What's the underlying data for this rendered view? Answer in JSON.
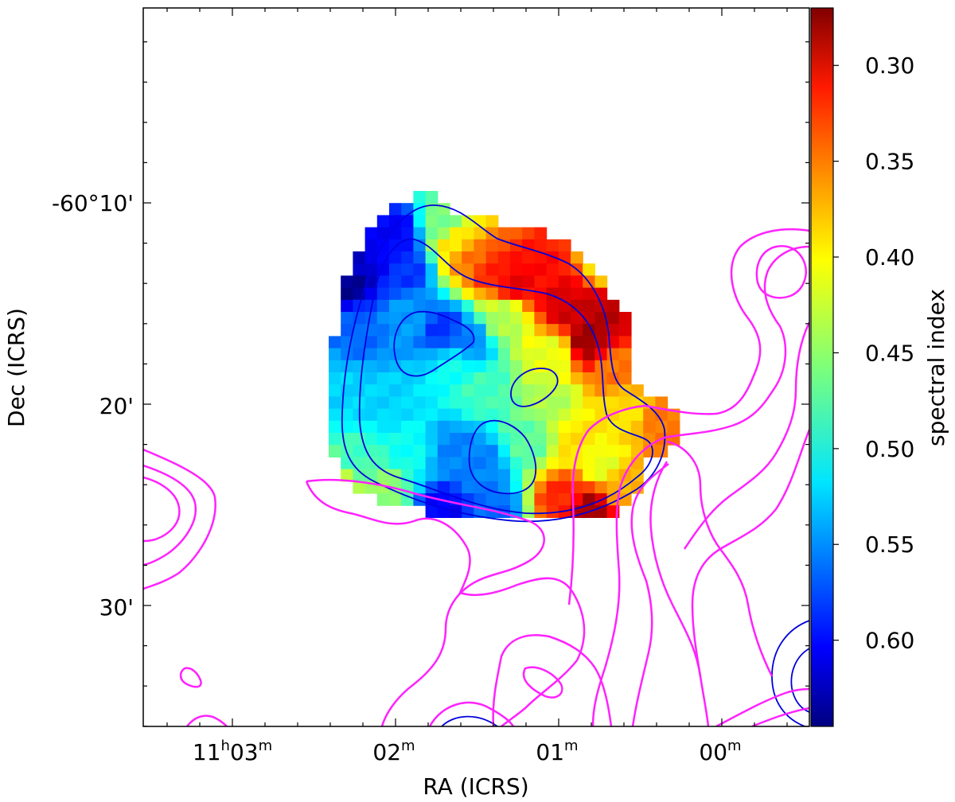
{
  "chart_data": {
    "type": "heatmap",
    "title": "",
    "xlabel": "RA (ICRS)",
    "ylabel": "Dec (ICRS)",
    "colorbar_label": "spectral index",
    "colormap": "jet",
    "grid": false,
    "legend": "none",
    "x_ticks": [
      {
        "label": "11",
        "sup_h": "h",
        "main2": "03",
        "sup_m": "m"
      },
      {
        "label": "02",
        "sup_m": "m"
      },
      {
        "label": "01",
        "sup_m": "m"
      },
      {
        "label": "00",
        "sup_m": "m"
      }
    ],
    "y_ticks": [
      "-60°10'",
      "20'",
      "30'"
    ],
    "colorbar_range": [
      0.27,
      0.645
    ],
    "colorbar_ticks": [
      "0.30",
      "0.35",
      "0.40",
      "0.45",
      "0.50",
      "0.55",
      "0.60"
    ],
    "colorbar_tick_values": [
      0.3,
      0.35,
      0.4,
      0.45,
      0.5,
      0.55,
      0.6
    ],
    "contours": [
      {
        "color": "#0000dd",
        "description": "radio intensity contours"
      },
      {
        "color": "#ff22ff",
        "description": "comparison emission contours"
      }
    ]
  }
}
